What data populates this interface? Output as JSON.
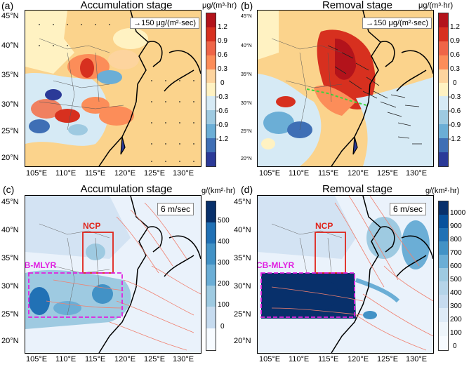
{
  "panels": [
    {
      "label": "(a)",
      "title": "Accumulation stage",
      "unit": "μg/(m³·hr)",
      "ref_vector": "→150 μg/(m²·sec)"
    },
    {
      "label": "(b)",
      "title": "Removal stage",
      "unit": "μg/(m³·hr)",
      "ref_vector": "→150 μg/(m²·sec)"
    },
    {
      "label": "(c)",
      "title": "Accumulation stage",
      "unit": "g/(km²·hr)",
      "ref_vector": "6 m/sec"
    },
    {
      "label": "(d)",
      "title": "Removal stage",
      "unit": "g/(km²·hr)",
      "ref_vector": "6 m/sec"
    }
  ],
  "lat_ticks": [
    "45°N",
    "40°N",
    "35°N",
    "30°N",
    "25°N",
    "20°N"
  ],
  "lon_ticks": [
    "105°E",
    "110°E",
    "115°E",
    "120°E",
    "125°E",
    "130°E"
  ],
  "colorbar_top": {
    "labels": [
      "1.2",
      "0.9",
      "0.6",
      "0.3",
      "0",
      "-0.3",
      "-0.6",
      "-0.9",
      "-1.2"
    ],
    "colors": [
      "#b3131b",
      "#d7301f",
      "#ef6548",
      "#fc8d59",
      "#fdd49e",
      "#fff2c2",
      "#d6eaf5",
      "#9ecae1",
      "#6baed6",
      "#3f6fb5",
      "#2b3a98"
    ]
  },
  "colorbar_c": {
    "labels": [
      "500",
      "400",
      "300",
      "200",
      "100",
      "0"
    ],
    "colors": [
      "#08306b",
      "#2171b5",
      "#4292c6",
      "#6baed6",
      "#9ecae1",
      "#c6dbef",
      "#f7fbff"
    ]
  },
  "colorbar_d": {
    "labels": [
      "1000",
      "900",
      "800",
      "700",
      "600",
      "500",
      "400",
      "300",
      "200",
      "100",
      "0"
    ],
    "colors": [
      "#08306b",
      "#08519c",
      "#2171b5",
      "#4292c6",
      "#6baed6",
      "#9ecae1",
      "#b5d4e9",
      "#c6dbef",
      "#deebf7",
      "#eef5fb",
      "#f7fbff"
    ]
  },
  "regions": {
    "ncp": "NCP",
    "scb": "SCB-MLYR"
  },
  "colors": {
    "ncp_box": "#e0241b",
    "scb_box": "#e020e0",
    "wind": "#f08070",
    "flux_arrow": "#222222",
    "front": "#3cd63c"
  }
}
